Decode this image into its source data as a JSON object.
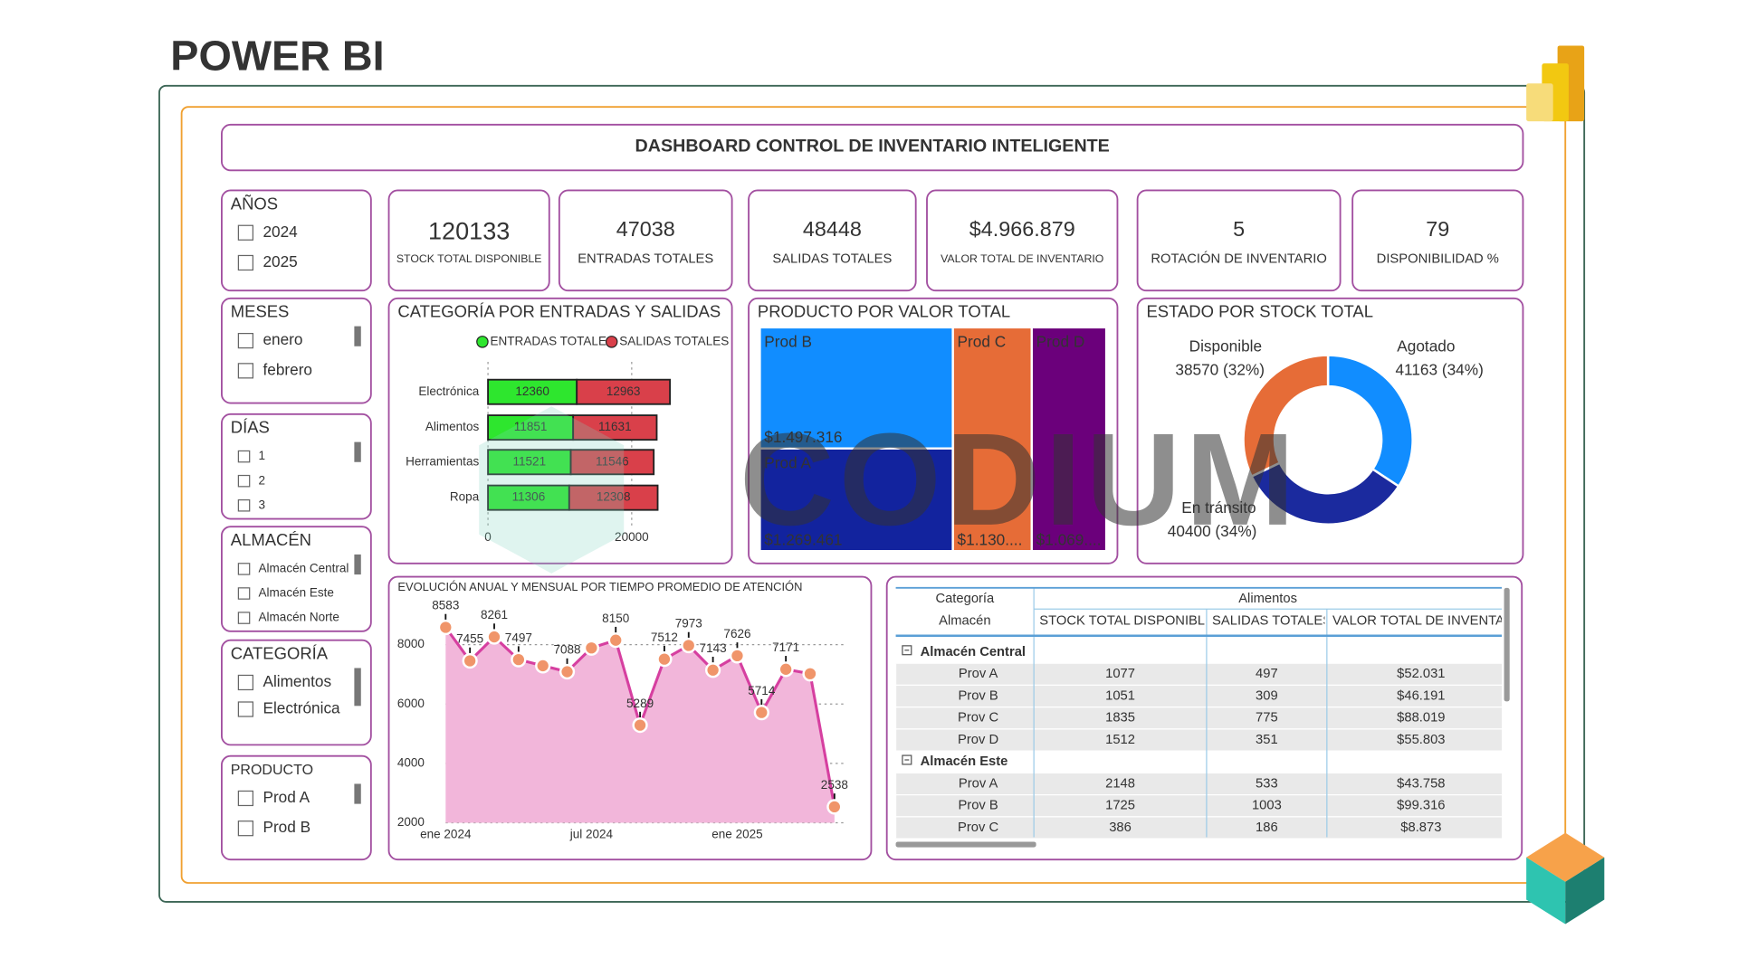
{
  "header": {
    "title": "POWER BI"
  },
  "dashboard_title": "DASHBOARD CONTROL DE INVENTARIO INTELIGENTE",
  "slicers": [
    {
      "title": "AÑOS",
      "items": [
        "2024",
        "2025"
      ]
    },
    {
      "title": "MESES",
      "items": [
        "enero",
        "febrero"
      ]
    },
    {
      "title": "DÍAS",
      "items": [
        "1",
        "2",
        "3"
      ]
    },
    {
      "title": "ALMACÉN",
      "items": [
        "Almacén Central",
        "Almacén Este",
        "Almacén Norte"
      ]
    },
    {
      "title": "CATEGORÍA",
      "items": [
        "Alimentos",
        "Electrónica"
      ]
    },
    {
      "title": "PRODUCTO",
      "items": [
        "Prod A",
        "Prod B"
      ]
    }
  ],
  "kpis": [
    {
      "value": 120133,
      "label": "STOCK TOTAL DISPONIBLE"
    },
    {
      "value": 47038,
      "label": "ENTRADAS TOTALES"
    },
    {
      "value": 48448,
      "label": "SALIDAS TOTALES"
    },
    {
      "value": "$4.966.879",
      "label": "VALOR TOTAL DE INVENTARIO"
    },
    {
      "value": 5,
      "label": "ROTACIÓN DE INVENTARIO"
    },
    {
      "value": 79,
      "label": "DISPONIBILIDAD %"
    }
  ],
  "chart_data": [
    {
      "type": "bar",
      "orientation": "horizontal",
      "stacked": true,
      "title": "CATEGORÍA POR ENTRADAS Y SALIDAS",
      "categories": [
        "Electrónica",
        "Alimentos",
        "Herramientas",
        "Ropa"
      ],
      "series": [
        {
          "name": "ENTRADAS TOTALES",
          "color": "#2ee62e",
          "values": [
            12360,
            11851,
            11521,
            11306
          ]
        },
        {
          "name": "SALIDAS TOTALES",
          "color": "#d9404a",
          "values": [
            12963,
            11631,
            11546,
            12308
          ]
        }
      ],
      "xlim": [
        0,
        30000
      ],
      "xticks": [
        0,
        20000
      ],
      "grid": true,
      "legend": "top"
    },
    {
      "type": "treemap",
      "title": "PRODUCTO POR VALOR TOTAL",
      "categories": [
        "Prod B",
        "Prod A",
        "Prod C",
        "Prod D"
      ],
      "values": [
        1497316,
        1269461,
        1130000,
        1069000
      ],
      "value_labels": [
        "$1.497.316",
        "$1.269.461",
        "$1.130....",
        "$1.069...."
      ],
      "colors": [
        "#118dff",
        "#12239e",
        "#e66c37",
        "#6b007b"
      ]
    },
    {
      "type": "donut",
      "title": "ESTADO POR STOCK TOTAL",
      "categories": [
        "Agotado",
        "En tránsito",
        "Disponible"
      ],
      "values": [
        41163,
        40400,
        38570
      ],
      "value_labels": [
        "41163 (34%)",
        "40400 (34%)",
        "38570 (32%)"
      ],
      "colors": [
        "#118dff",
        "#1b2a9e",
        "#e66c37"
      ]
    },
    {
      "type": "line",
      "area": true,
      "title": "EVOLUCIÓN ANUAL Y MENSUAL POR TIEMPO PROMEDIO DE ATENCIÓN",
      "categories": [
        "ene 2024",
        null,
        null,
        null,
        null,
        null,
        "jul 2024",
        null,
        null,
        null,
        null,
        null,
        "ene 2025",
        null,
        null,
        null,
        null
      ],
      "values": [
        8583,
        7455,
        8261,
        7497,
        7290,
        7088,
        7890,
        8150,
        5289,
        7512,
        7973,
        7143,
        7626,
        5714,
        7171,
        7020,
        2538
      ],
      "value_labels": [
        "8583",
        "7455",
        "8261",
        "7497",
        null,
        "7088",
        null,
        "8150",
        "5289",
        "7512",
        "7973",
        "7143",
        "7626",
        "5714",
        "7171",
        null,
        "2538"
      ],
      "color": "#d63fa0",
      "fill": "#f2b6da",
      "marker_color": "#f0956a",
      "ylim": [
        2000,
        9200
      ],
      "yticks": [
        2000,
        4000,
        6000,
        8000
      ],
      "grid": true
    }
  ],
  "table": {
    "header": [
      [
        "Categoría",
        "Alimentos"
      ],
      [
        "Almacén",
        "STOCK TOTAL DISPONIBLE",
        "SALIDAS TOTALES",
        "VALOR TOTAL DE INVENTARIO"
      ]
    ],
    "groups": [
      {
        "name": "Almacén Central",
        "rows": [
          [
            "Prov A",
            "1077",
            "497",
            "$52.031"
          ],
          [
            "Prov B",
            "1051",
            "309",
            "$46.191"
          ],
          [
            "Prov C",
            "1835",
            "775",
            "$88.019"
          ],
          [
            "Prov D",
            "1512",
            "351",
            "$55.803"
          ]
        ]
      },
      {
        "name": "Almacén Este",
        "rows": [
          [
            "Prov A",
            "2148",
            "533",
            "$43.758"
          ],
          [
            "Prov B",
            "1725",
            "1003",
            "$99.316"
          ],
          [
            "Prov C",
            "386",
            "186",
            "$8.873"
          ]
        ]
      }
    ]
  },
  "watermark": "CODIUM"
}
